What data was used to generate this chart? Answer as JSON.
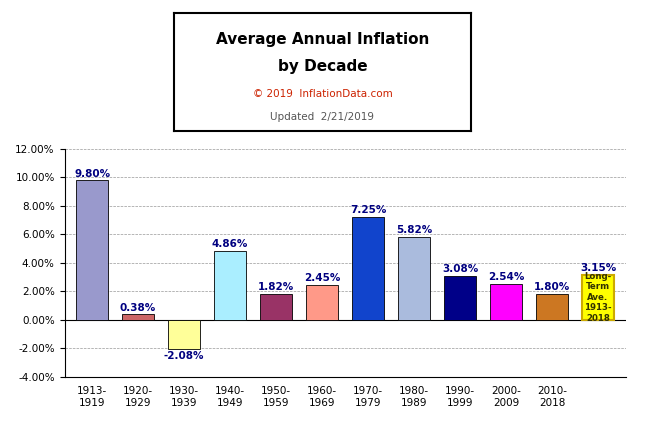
{
  "categories": [
    "1913-\n1919",
    "1920-\n1929",
    "1930-\n1939",
    "1940-\n1949",
    "1950-\n1959",
    "1960-\n1969",
    "1970-\n1979",
    "1980-\n1989",
    "1990-\n1999",
    "2000-\n2009",
    "2010-\n2018"
  ],
  "values": [
    9.8,
    0.38,
    -2.08,
    4.86,
    1.82,
    2.45,
    7.25,
    5.82,
    3.08,
    2.54,
    1.8
  ],
  "long_term_avg": 3.15,
  "bar_colors": [
    "#9999CC",
    "#CC6666",
    "#FFFF99",
    "#AAEEFF",
    "#993366",
    "#FF9988",
    "#1144CC",
    "#AABBDD",
    "#000088",
    "#FF00FF",
    "#CC7722"
  ],
  "long_term_color": "#FFFF00",
  "long_term_edge_color": "#CCAA00",
  "title_line1": "Average Annual Inflation",
  "title_line2": "by Decade",
  "subtitle1": "© 2019  InflationData.com",
  "subtitle2": "Updated  2/21/2019",
  "subtitle1_color": "#CC2200",
  "subtitle2_color": "#555555",
  "ylim": [
    -4.0,
    12.0
  ],
  "yticks": [
    -4.0,
    -2.0,
    0.0,
    2.0,
    4.0,
    6.0,
    8.0,
    10.0,
    12.0
  ],
  "grid_color": "#999999",
  "bg_color": "#FFFFFF",
  "label_color": "#000080"
}
